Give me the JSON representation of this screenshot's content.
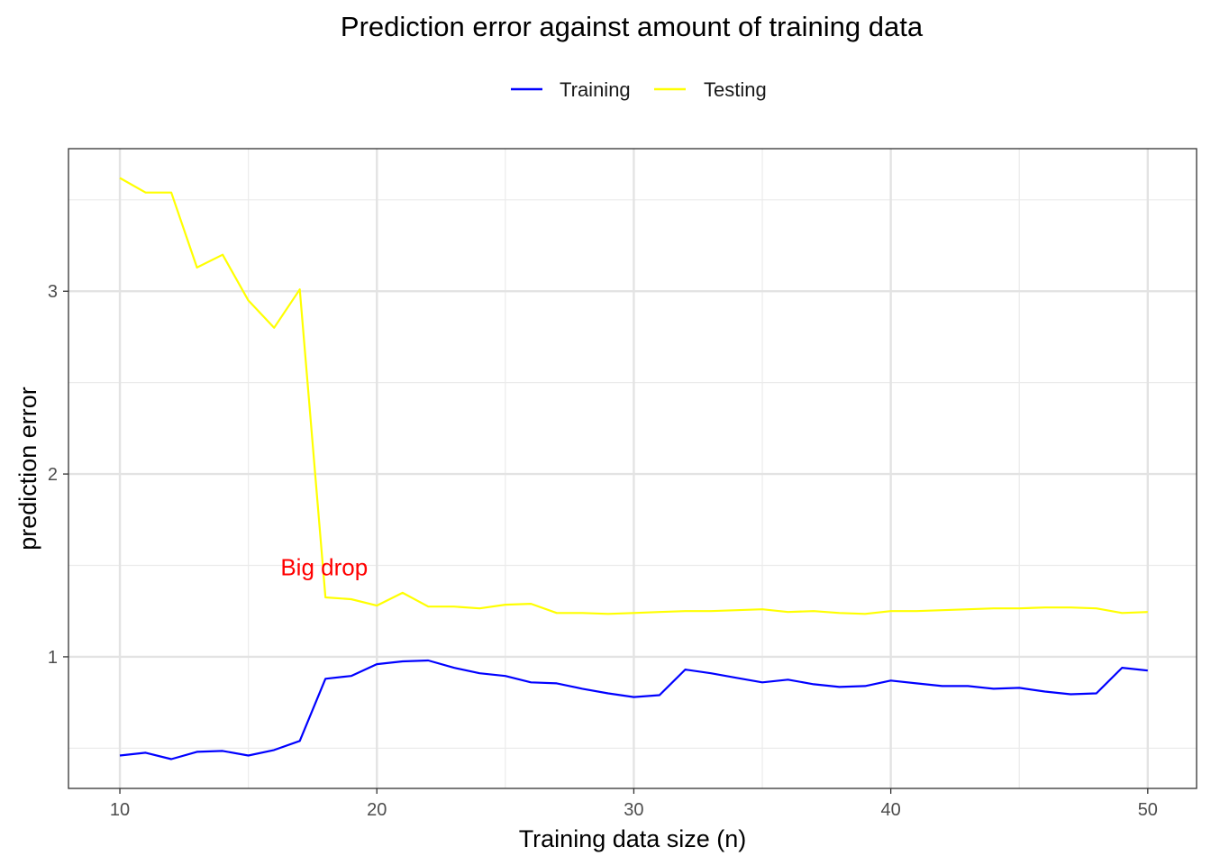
{
  "chart_data": {
    "type": "line",
    "title": "Prediction error against amount of training data",
    "xlabel": "Training data size (n)",
    "ylabel": "prediction error",
    "xlim": [
      8,
      51.9
    ],
    "ylim": [
      0.28,
      3.78
    ],
    "x_ticks": [
      10,
      20,
      30,
      40,
      50
    ],
    "y_ticks": [
      1,
      2,
      3
    ],
    "x_minor": [
      15,
      25,
      35,
      45
    ],
    "y_minor": [
      0.5,
      1.5,
      2.5,
      3.5
    ],
    "grid": true,
    "legend_position": "top",
    "x": [
      10,
      11,
      12,
      13,
      14,
      15,
      16,
      17,
      18,
      19,
      20,
      21,
      22,
      23,
      24,
      25,
      26,
      27,
      28,
      29,
      30,
      31,
      32,
      33,
      34,
      35,
      36,
      37,
      38,
      39,
      40,
      41,
      42,
      43,
      44,
      45,
      46,
      47,
      48,
      49,
      50
    ],
    "series": [
      {
        "name": "Training",
        "color": "#0000ff",
        "values": [
          0.46,
          0.475,
          0.44,
          0.48,
          0.485,
          0.46,
          0.49,
          0.54,
          0.88,
          0.895,
          0.96,
          0.975,
          0.98,
          0.94,
          0.91,
          0.895,
          0.86,
          0.855,
          0.825,
          0.8,
          0.78,
          0.79,
          0.93,
          0.91,
          0.885,
          0.86,
          0.875,
          0.85,
          0.835,
          0.84,
          0.87,
          0.855,
          0.84,
          0.84,
          0.825,
          0.83,
          0.81,
          0.795,
          0.8,
          0.94,
          0.925
        ]
      },
      {
        "name": "Testing",
        "color": "#ffff00",
        "values": [
          3.62,
          3.54,
          3.54,
          3.13,
          3.2,
          2.95,
          2.8,
          3.01,
          1.325,
          1.315,
          1.28,
          1.35,
          1.275,
          1.275,
          1.265,
          1.285,
          1.29,
          1.24,
          1.24,
          1.235,
          1.24,
          1.245,
          1.25,
          1.25,
          1.255,
          1.26,
          1.245,
          1.25,
          1.24,
          1.235,
          1.25,
          1.25,
          1.255,
          1.26,
          1.265,
          1.265,
          1.27,
          1.27,
          1.265,
          1.24,
          1.245
        ]
      }
    ],
    "annotations": [
      {
        "text": "Big drop",
        "x": 17.95,
        "y": 1.49,
        "color": "#ff0000"
      }
    ]
  }
}
